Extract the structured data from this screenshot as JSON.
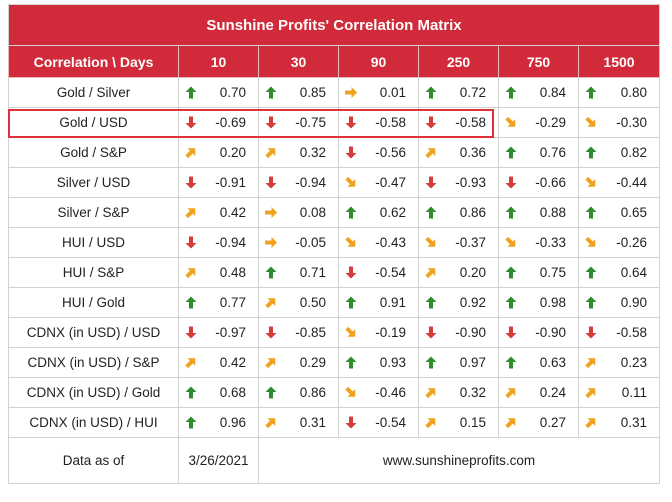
{
  "title": "Sunshine Profits' Correlation Matrix",
  "header": {
    "corner": "Correlation \\ Days",
    "days": [
      "10",
      "30",
      "90",
      "250",
      "750",
      "1500"
    ]
  },
  "colors": {
    "header_bg": "#d12a3a",
    "up": "#2e8b2e",
    "down": "#d43c3c",
    "sideways": "#f0a21e",
    "highlight": "#e0303a"
  },
  "rows": [
    {
      "pair": "Gold / Silver",
      "cells": [
        {
          "v": "0.70",
          "dir": "up"
        },
        {
          "v": "0.85",
          "dir": "up"
        },
        {
          "v": "0.01",
          "dir": "right"
        },
        {
          "v": "0.72",
          "dir": "up"
        },
        {
          "v": "0.84",
          "dir": "up"
        },
        {
          "v": "0.80",
          "dir": "up"
        }
      ]
    },
    {
      "pair": "Gold / USD",
      "highlighted": true,
      "cells": [
        {
          "v": "-0.69",
          "dir": "down"
        },
        {
          "v": "-0.75",
          "dir": "down"
        },
        {
          "v": "-0.58",
          "dir": "down"
        },
        {
          "v": "-0.58",
          "dir": "down"
        },
        {
          "v": "-0.29",
          "dir": "down-right"
        },
        {
          "v": "-0.30",
          "dir": "down-right"
        }
      ]
    },
    {
      "pair": "Gold / S&P",
      "cells": [
        {
          "v": "0.20",
          "dir": "up-right"
        },
        {
          "v": "0.32",
          "dir": "up-right"
        },
        {
          "v": "-0.56",
          "dir": "down"
        },
        {
          "v": "0.36",
          "dir": "up-right"
        },
        {
          "v": "0.76",
          "dir": "up"
        },
        {
          "v": "0.82",
          "dir": "up"
        }
      ]
    },
    {
      "pair": "Silver / USD",
      "cells": [
        {
          "v": "-0.91",
          "dir": "down"
        },
        {
          "v": "-0.94",
          "dir": "down"
        },
        {
          "v": "-0.47",
          "dir": "down-right"
        },
        {
          "v": "-0.93",
          "dir": "down"
        },
        {
          "v": "-0.66",
          "dir": "down"
        },
        {
          "v": "-0.44",
          "dir": "down-right"
        }
      ]
    },
    {
      "pair": "Silver / S&P",
      "cells": [
        {
          "v": "0.42",
          "dir": "up-right"
        },
        {
          "v": "0.08",
          "dir": "right"
        },
        {
          "v": "0.62",
          "dir": "up"
        },
        {
          "v": "0.86",
          "dir": "up"
        },
        {
          "v": "0.88",
          "dir": "up"
        },
        {
          "v": "0.65",
          "dir": "up"
        }
      ]
    },
    {
      "pair": "HUI / USD",
      "cells": [
        {
          "v": "-0.94",
          "dir": "down"
        },
        {
          "v": "-0.05",
          "dir": "right"
        },
        {
          "v": "-0.43",
          "dir": "down-right"
        },
        {
          "v": "-0.37",
          "dir": "down-right"
        },
        {
          "v": "-0.33",
          "dir": "down-right"
        },
        {
          "v": "-0.26",
          "dir": "down-right"
        }
      ]
    },
    {
      "pair": "HUI / S&P",
      "cells": [
        {
          "v": "0.48",
          "dir": "up-right"
        },
        {
          "v": "0.71",
          "dir": "up"
        },
        {
          "v": "-0.54",
          "dir": "down"
        },
        {
          "v": "0.20",
          "dir": "up-right"
        },
        {
          "v": "0.75",
          "dir": "up"
        },
        {
          "v": "0.64",
          "dir": "up"
        }
      ]
    },
    {
      "pair": "HUI / Gold",
      "cells": [
        {
          "v": "0.77",
          "dir": "up"
        },
        {
          "v": "0.50",
          "dir": "up-right"
        },
        {
          "v": "0.91",
          "dir": "up"
        },
        {
          "v": "0.92",
          "dir": "up"
        },
        {
          "v": "0.98",
          "dir": "up"
        },
        {
          "v": "0.90",
          "dir": "up"
        }
      ]
    },
    {
      "pair": "CDNX (in USD) / USD",
      "cells": [
        {
          "v": "-0.97",
          "dir": "down"
        },
        {
          "v": "-0.85",
          "dir": "down"
        },
        {
          "v": "-0.19",
          "dir": "down-right"
        },
        {
          "v": "-0.90",
          "dir": "down"
        },
        {
          "v": "-0.90",
          "dir": "down"
        },
        {
          "v": "-0.58",
          "dir": "down"
        }
      ]
    },
    {
      "pair": "CDNX (in USD) / S&P",
      "cells": [
        {
          "v": "0.42",
          "dir": "up-right"
        },
        {
          "v": "0.29",
          "dir": "up-right"
        },
        {
          "v": "0.93",
          "dir": "up"
        },
        {
          "v": "0.97",
          "dir": "up"
        },
        {
          "v": "0.63",
          "dir": "up"
        },
        {
          "v": "0.23",
          "dir": "up-right"
        }
      ]
    },
    {
      "pair": "CDNX (in USD) / Gold",
      "cells": [
        {
          "v": "0.68",
          "dir": "up"
        },
        {
          "v": "0.86",
          "dir": "up"
        },
        {
          "v": "-0.46",
          "dir": "down-right"
        },
        {
          "v": "0.32",
          "dir": "up-right"
        },
        {
          "v": "0.24",
          "dir": "up-right"
        },
        {
          "v": "0.11",
          "dir": "up-right"
        }
      ]
    },
    {
      "pair": "CDNX (in USD) / HUI",
      "cells": [
        {
          "v": "0.96",
          "dir": "up"
        },
        {
          "v": "0.31",
          "dir": "up-right"
        },
        {
          "v": "-0.54",
          "dir": "down"
        },
        {
          "v": "0.15",
          "dir": "up-right"
        },
        {
          "v": "0.27",
          "dir": "up-right"
        },
        {
          "v": "0.31",
          "dir": "up-right"
        }
      ]
    }
  ],
  "footer": {
    "label": "Data as of",
    "date": "3/26/2021",
    "website": "www.sunshineprofits.com"
  }
}
